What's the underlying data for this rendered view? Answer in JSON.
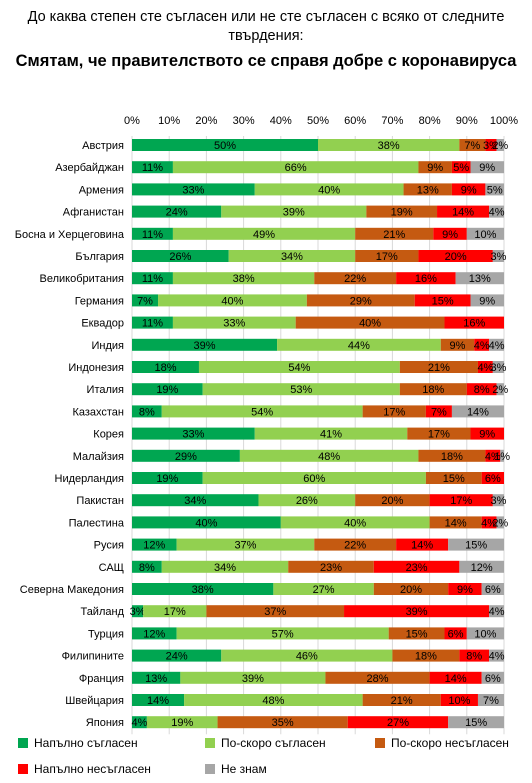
{
  "chart_data": {
    "type": "bar",
    "orientation": "horizontal",
    "stacked": true,
    "title": "До каква степен сте съгласен или не сте съгласен с всяко от следните твърдения:",
    "subtitle": "Смятам, че правителството се справя добре с коронавируса",
    "xlim": [
      0,
      100
    ],
    "x_ticks": [
      "0%",
      "10%",
      "20%",
      "30%",
      "40%",
      "50%",
      "60%",
      "70%",
      "80%",
      "90%",
      "100%"
    ],
    "grid": true,
    "legend_position": "bottom",
    "categories": [
      "Австрия",
      "Азербайджан",
      "Армения",
      "Афганистан",
      "Босна и Херцеговина",
      "България",
      "Великобритания",
      "Германия",
      "Еквадор",
      "Индия",
      "Индонезия",
      "Италия",
      "Казахстан",
      "Корея",
      "Малайзия",
      "Нидерландия",
      "Пакистан",
      "Палестина",
      "Русия",
      "САЩ",
      "Северна Македония",
      "Тайланд",
      "Турция",
      "Филипините",
      "Франция",
      "Швейцария",
      "Япония"
    ],
    "series": [
      {
        "name": "Напълно съгласен",
        "color": "#00a651",
        "values": [
          50,
          11,
          33,
          24,
          11,
          26,
          11,
          7,
          11,
          39,
          18,
          19,
          8,
          33,
          29,
          19,
          34,
          40,
          12,
          8,
          38,
          3,
          12,
          24,
          13,
          14,
          4
        ]
      },
      {
        "name": "По-скоро съгласен",
        "color": "#92d050",
        "values": [
          38,
          66,
          40,
          39,
          49,
          34,
          38,
          40,
          33,
          44,
          54,
          53,
          54,
          41,
          48,
          60,
          26,
          40,
          37,
          34,
          27,
          17,
          57,
          46,
          39,
          48,
          19
        ]
      },
      {
        "name": "По-скоро несъгласен",
        "color": "#c55a11",
        "values": [
          7,
          9,
          13,
          19,
          21,
          17,
          22,
          29,
          40,
          9,
          21,
          18,
          17,
          17,
          18,
          15,
          20,
          14,
          22,
          23,
          20,
          37,
          15,
          18,
          28,
          21,
          35
        ]
      },
      {
        "name": "Напълно несъгласен",
        "color": "#ff0000",
        "values": [
          3,
          5,
          9,
          14,
          9,
          20,
          16,
          15,
          16,
          4,
          4,
          8,
          7,
          9,
          4,
          6,
          17,
          4,
          14,
          23,
          9,
          39,
          6,
          8,
          14,
          10,
          27
        ]
      },
      {
        "name": "Не знам",
        "color": "#a6a6a6",
        "values": [
          2,
          9,
          5,
          4,
          10,
          3,
          13,
          9,
          0,
          4,
          3,
          2,
          14,
          0,
          1,
          0,
          3,
          2,
          15,
          12,
          6,
          4,
          10,
          4,
          6,
          7,
          15
        ]
      }
    ]
  }
}
